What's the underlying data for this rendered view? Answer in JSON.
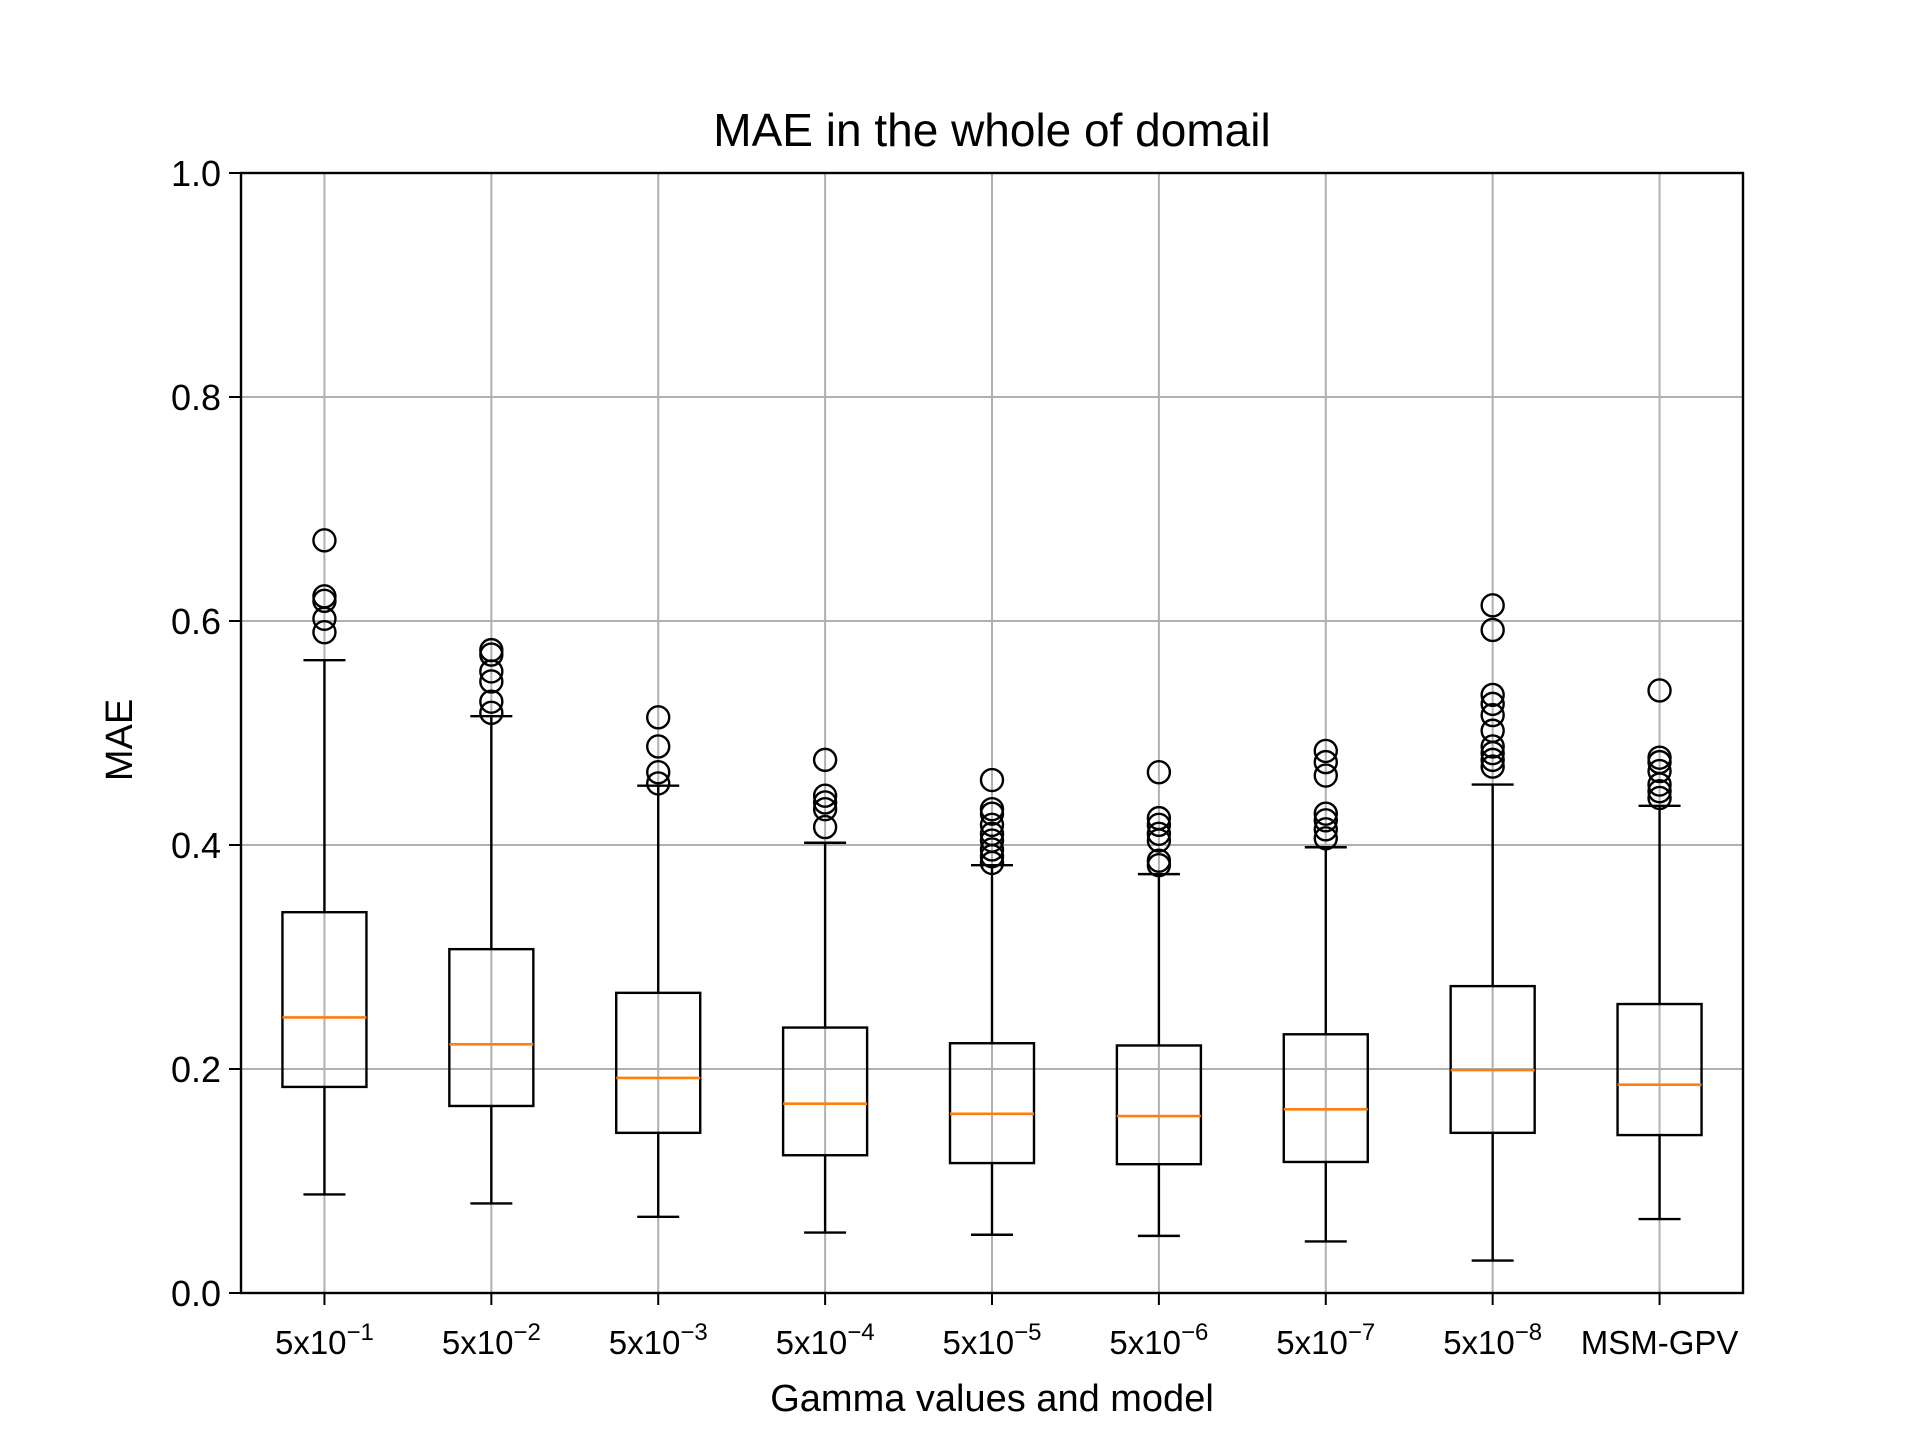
{
  "chart_data": {
    "type": "box",
    "title": "MAE in the whole of domail",
    "xlabel": "Gamma values and model",
    "ylabel": "MAE",
    "ylim": [
      0.0,
      1.0
    ],
    "yticks": [
      "0.0",
      "0.2",
      "0.4",
      "0.6",
      "0.8",
      "1.0"
    ],
    "grid": true,
    "colors": {
      "box": "#000000",
      "median": "#ff7f0e",
      "grid": "#b0b0b0"
    },
    "categories": [
      {
        "base": "5x10",
        "exp": "−1"
      },
      {
        "base": "5x10",
        "exp": "−2"
      },
      {
        "base": "5x10",
        "exp": "−3"
      },
      {
        "base": "5x10",
        "exp": "−4"
      },
      {
        "base": "5x10",
        "exp": "−5"
      },
      {
        "base": "5x10",
        "exp": "−6"
      },
      {
        "base": "5x10",
        "exp": "−7"
      },
      {
        "base": "5x10",
        "exp": "−8"
      },
      {
        "base": "MSM-GPV",
        "exp": ""
      }
    ],
    "boxes": [
      {
        "whislo": 0.088,
        "q1": 0.184,
        "med": 0.246,
        "q3": 0.34,
        "whishi": 0.565,
        "fliers": [
          0.59,
          0.602,
          0.618,
          0.622,
          0.672
        ]
      },
      {
        "whislo": 0.08,
        "q1": 0.167,
        "med": 0.222,
        "q3": 0.307,
        "whishi": 0.515,
        "fliers": [
          0.518,
          0.528,
          0.546,
          0.555,
          0.57,
          0.574
        ]
      },
      {
        "whislo": 0.068,
        "q1": 0.143,
        "med": 0.192,
        "q3": 0.268,
        "whishi": 0.453,
        "fliers": [
          0.455,
          0.465,
          0.488,
          0.514
        ]
      },
      {
        "whislo": 0.054,
        "q1": 0.123,
        "med": 0.169,
        "q3": 0.237,
        "whishi": 0.402,
        "fliers": [
          0.416,
          0.432,
          0.438,
          0.444,
          0.476
        ]
      },
      {
        "whislo": 0.052,
        "q1": 0.116,
        "med": 0.16,
        "q3": 0.223,
        "whishi": 0.382,
        "fliers": [
          0.384,
          0.39,
          0.396,
          0.404,
          0.41,
          0.418,
          0.428,
          0.432,
          0.458
        ]
      },
      {
        "whislo": 0.051,
        "q1": 0.115,
        "med": 0.158,
        "q3": 0.221,
        "whishi": 0.374,
        "fliers": [
          0.382,
          0.386,
          0.404,
          0.41,
          0.418,
          0.424,
          0.465
        ]
      },
      {
        "whislo": 0.046,
        "q1": 0.117,
        "med": 0.164,
        "q3": 0.231,
        "whishi": 0.398,
        "fliers": [
          0.406,
          0.414,
          0.422,
          0.428,
          0.462,
          0.474,
          0.484
        ]
      },
      {
        "whislo": 0.029,
        "q1": 0.143,
        "med": 0.199,
        "q3": 0.274,
        "whishi": 0.454,
        "fliers": [
          0.47,
          0.476,
          0.482,
          0.488,
          0.502,
          0.516,
          0.526,
          0.534,
          0.592,
          0.614
        ]
      },
      {
        "whislo": 0.066,
        "q1": 0.141,
        "med": 0.186,
        "q3": 0.258,
        "whishi": 0.435,
        "fliers": [
          0.442,
          0.448,
          0.454,
          0.466,
          0.474,
          0.478,
          0.538
        ]
      }
    ]
  }
}
